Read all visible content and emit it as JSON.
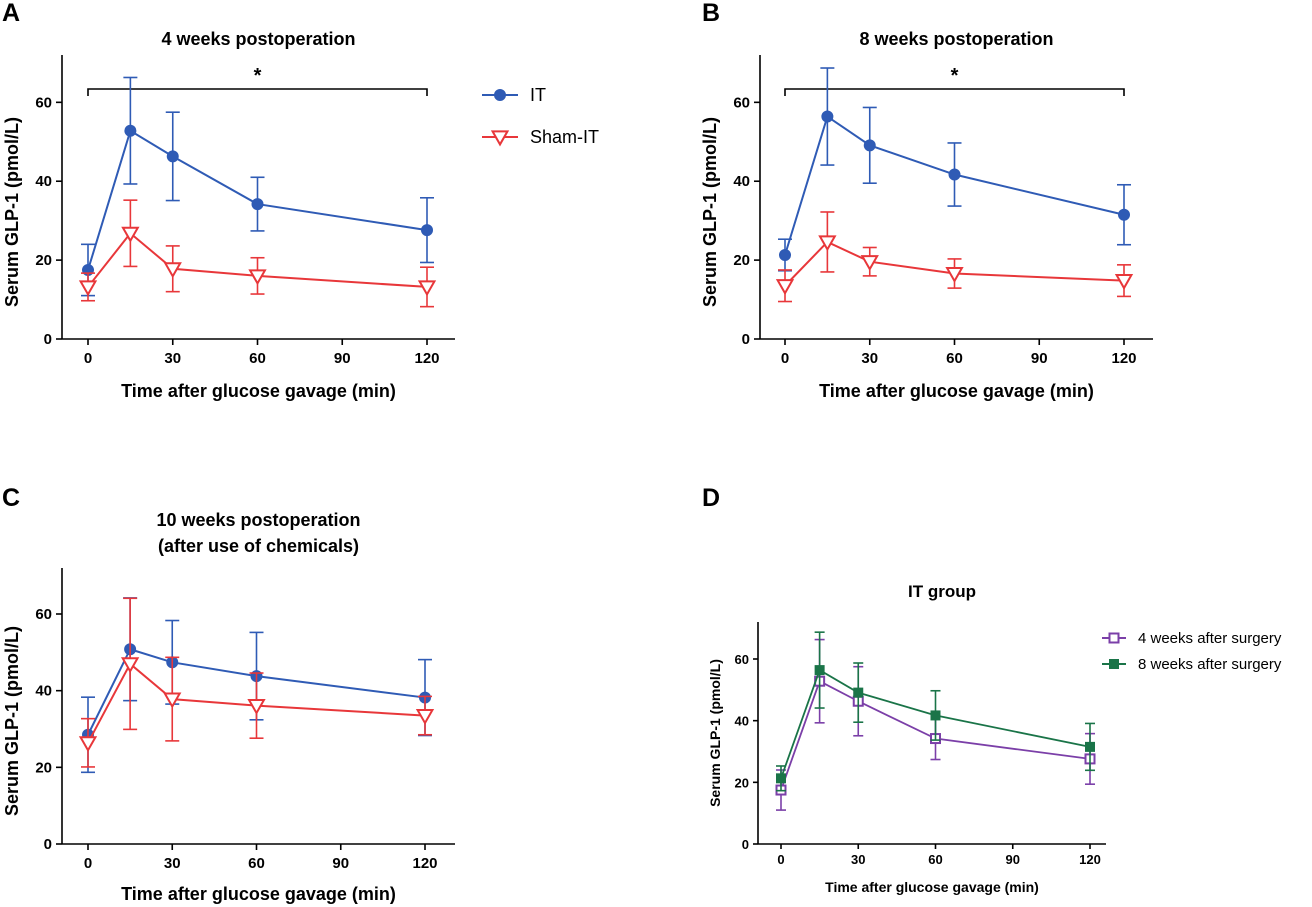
{
  "colors": {
    "IT": "#2f5bb5",
    "Sham-IT": "#e8373a",
    "4 weeks after surgery": "#7b3fa8",
    "8 weeks after surgery": "#1a7448"
  },
  "chart_data": [
    {
      "type": "line",
      "panel": "A",
      "title": "4 weeks postoperation",
      "xlabel": "Time after glucose gavage (min)",
      "ylabel": "Serum GLP-1 (pmol/L)",
      "xlim": [
        -5,
        128
      ],
      "ylim": [
        0,
        72
      ],
      "xticks": [
        0,
        30,
        60,
        90,
        120
      ],
      "yticks": [
        0,
        20,
        40,
        60
      ],
      "x": [
        0,
        15,
        30,
        60,
        120
      ],
      "series": [
        {
          "name": "IT",
          "marker": "circle",
          "values": [
            17.5,
            52.8,
            46.3,
            34.2,
            27.6
          ],
          "err": [
            6.5,
            13.5,
            11.2,
            6.8,
            8.2
          ]
        },
        {
          "name": "Sham-IT",
          "marker": "triangle-down-open",
          "values": [
            13.2,
            26.8,
            17.8,
            16.0,
            13.2
          ],
          "err": [
            3.5,
            8.4,
            5.8,
            4.6,
            5.0
          ]
        }
      ],
      "significance": {
        "label": "*",
        "x_from": 0,
        "x_to": 120
      },
      "legend": "right"
    },
    {
      "type": "line",
      "panel": "B",
      "title": "8 weeks postoperation",
      "xlabel": "Time after glucose gavage (min)",
      "ylabel": "Serum GLP-1 (pmol/L)",
      "xlim": [
        -5,
        128
      ],
      "ylim": [
        0,
        72
      ],
      "xticks": [
        0,
        30,
        60,
        90,
        120
      ],
      "yticks": [
        0,
        20,
        40,
        60
      ],
      "x": [
        0,
        15,
        30,
        60,
        120
      ],
      "series": [
        {
          "name": "IT",
          "marker": "circle",
          "values": [
            21.3,
            56.4,
            49.1,
            41.7,
            31.5
          ],
          "err": [
            4.0,
            12.3,
            9.6,
            8.0,
            7.6
          ]
        },
        {
          "name": "Sham-IT",
          "marker": "triangle-down-open",
          "values": [
            13.5,
            24.6,
            19.6,
            16.6,
            14.8
          ],
          "err": [
            4.0,
            7.6,
            3.6,
            3.7,
            4.0
          ]
        }
      ],
      "significance": {
        "label": "*",
        "x_from": 0,
        "x_to": 120
      }
    },
    {
      "type": "line",
      "panel": "C",
      "title": "10 weeks postoperation",
      "subtitle": "(after use of chemicals)",
      "xlabel": "Time after glucose gavage (min)",
      "ylabel": "Serum GLP-1 (pmol/L)",
      "xlim": [
        -5,
        128
      ],
      "ylim": [
        0,
        72
      ],
      "xticks": [
        0,
        30,
        60,
        90,
        120
      ],
      "yticks": [
        0,
        20,
        40,
        60
      ],
      "x": [
        0,
        15,
        30,
        60,
        120
      ],
      "series": [
        {
          "name": "IT",
          "marker": "circle",
          "values": [
            28.5,
            50.8,
            47.4,
            43.8,
            38.2
          ],
          "err": [
            9.8,
            13.4,
            10.9,
            11.4,
            9.9
          ]
        },
        {
          "name": "Sham-IT",
          "marker": "triangle-down-open",
          "values": [
            26.4,
            47.0,
            37.8,
            36.1,
            33.5
          ],
          "err": [
            6.3,
            17.1,
            10.9,
            8.5,
            5.0
          ]
        }
      ]
    },
    {
      "type": "line",
      "panel": "D",
      "title": "IT group",
      "xlabel": "Time after glucose gavage (min)",
      "ylabel": "Serum GLP-1 (pmol/L)",
      "xlim": [
        -5,
        128
      ],
      "ylim": [
        0,
        72
      ],
      "xticks": [
        0,
        30,
        60,
        90,
        120
      ],
      "yticks": [
        0,
        20,
        40,
        60
      ],
      "x": [
        0,
        15,
        30,
        60,
        120
      ],
      "series": [
        {
          "name": "4 weeks after surgery",
          "marker": "square-open",
          "values": [
            17.5,
            52.8,
            46.3,
            34.2,
            27.6
          ],
          "err": [
            6.5,
            13.5,
            11.2,
            6.8,
            8.2
          ]
        },
        {
          "name": "8 weeks after surgery",
          "marker": "square-filled",
          "values": [
            21.3,
            56.4,
            49.1,
            41.7,
            31.5
          ],
          "err": [
            4.0,
            12.3,
            9.6,
            8.0,
            7.6
          ]
        }
      ],
      "legend": "right"
    }
  ]
}
